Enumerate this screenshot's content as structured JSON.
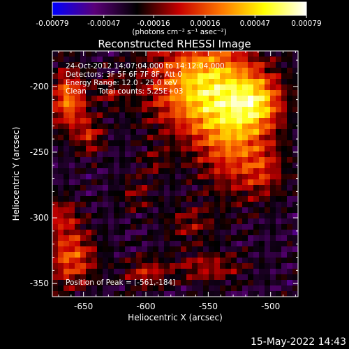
{
  "chart_data": {
    "type": "heatmap",
    "title": "Reconstructed RHESSI Image",
    "xlabel": "Heliocentric X (arcsec)",
    "ylabel": "Heliocentric Y (arcsec)",
    "xlim": [
      -675,
      -478
    ],
    "ylim": [
      -360,
      -173
    ],
    "x_ticks": [
      -650,
      -600,
      -550,
      -500
    ],
    "y_ticks": [
      -350,
      -300,
      -250,
      -200
    ],
    "x_tick_labels": [
      "-650",
      "-600",
      "-550",
      "-500"
    ],
    "y_tick_labels": [
      "-350",
      "-300",
      "-250",
      "-200"
    ],
    "colorbar": {
      "range": [
        -0.00079,
        0.00079
      ],
      "ticks": [
        -0.00079,
        -0.00047,
        -0.00016,
        0.00016,
        0.00047,
        0.00079
      ],
      "tick_labels": [
        "-0.00079",
        "-0.00047",
        "-0.00016",
        "0.00016",
        "0.00047",
        "0.00079"
      ],
      "unit_label": "(photons cm⁻² s⁻¹ asec⁻²)",
      "colormap": [
        "#0000ff",
        "#5a0078",
        "#000000",
        "#c80000",
        "#ff7800",
        "#ffff00",
        "#ffffff"
      ]
    },
    "annotations": [
      "24-Oct-2012 14:07:04.000 to 14:12:04.000",
      "Detectors: 3F 5F 6F 7F 8F, Att 0",
      "Energy Range: 12.0 - 25.0 keV",
      "Clean     Total counts: 5.25E+03",
      "Position of Peak = [-561,-184]"
    ],
    "peak": [
      -561,
      -184
    ],
    "sources": [
      {
        "x": -555,
        "y": -200,
        "amp": 0.00079,
        "sx": 30,
        "sy": 26
      },
      {
        "x": -530,
        "y": -238,
        "amp": 0.0005,
        "sx": 20,
        "sy": 30
      },
      {
        "x": -510,
        "y": -212,
        "amp": 0.00052,
        "sx": 14,
        "sy": 14
      },
      {
        "x": -505,
        "y": -265,
        "amp": 0.00028,
        "sx": 12,
        "sy": 14
      },
      {
        "x": -662,
        "y": -210,
        "amp": 0.0006,
        "sx": 10,
        "sy": 16
      },
      {
        "x": -645,
        "y": -238,
        "amp": 0.00035,
        "sx": 8,
        "sy": 10
      },
      {
        "x": -628,
        "y": -204,
        "amp": 0.00025,
        "sx": 8,
        "sy": 8
      },
      {
        "x": -668,
        "y": -298,
        "amp": 0.0003,
        "sx": 10,
        "sy": 10
      },
      {
        "x": -660,
        "y": -330,
        "amp": 0.00052,
        "sx": 14,
        "sy": 16
      },
      {
        "x": -600,
        "y": -342,
        "amp": 0.00035,
        "sx": 12,
        "sy": 8
      },
      {
        "x": -550,
        "y": -338,
        "amp": 0.00032,
        "sx": 20,
        "sy": 8
      },
      {
        "x": -565,
        "y": -305,
        "amp": 0.00025,
        "sx": 14,
        "sy": 10
      },
      {
        "x": -608,
        "y": -282,
        "amp": 0.00022,
        "sx": 10,
        "sy": 10
      },
      {
        "x": -592,
        "y": -258,
        "amp": 0.00018,
        "sx": 8,
        "sy": 8
      }
    ],
    "grid": false,
    "legend": "none"
  },
  "timestamp": "15-May-2022 14:43"
}
